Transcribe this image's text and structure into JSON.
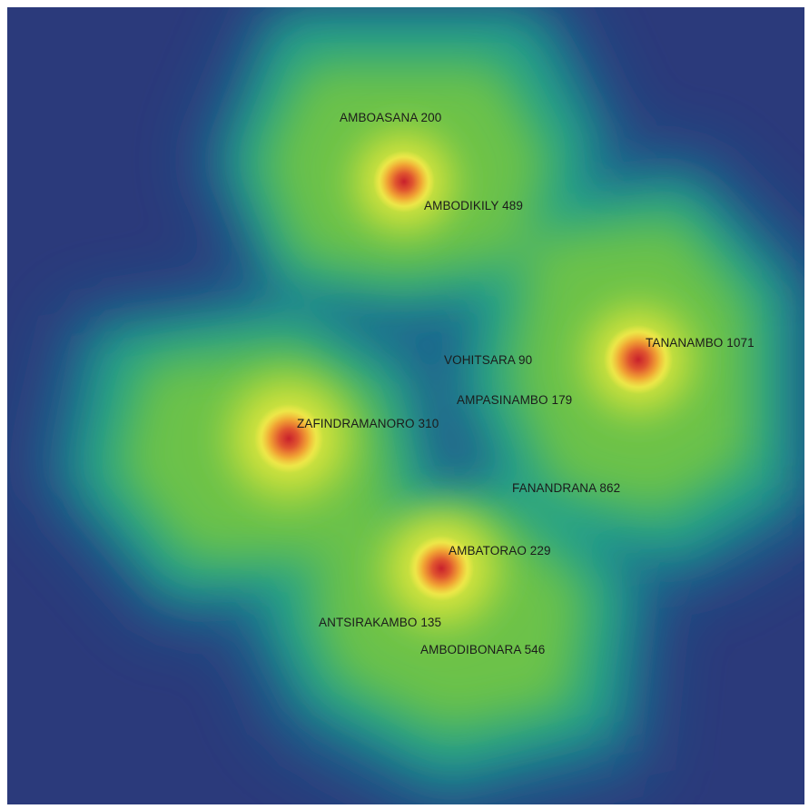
{
  "map": {
    "background_color": "#2b3a7b",
    "colormap": [
      "#2b3a7b",
      "#1d6c8c",
      "#22a089",
      "#74c447",
      "#b7dc2a",
      "#f4ec45",
      "#f0a030",
      "#d2352d"
    ],
    "places": [
      {
        "id": "amboasana",
        "label": "AMBOASANA 200"
      },
      {
        "id": "ambodikily",
        "label": "AMBODIKILY 489"
      },
      {
        "id": "tananambo",
        "label": "TANANAMBO 1071"
      },
      {
        "id": "vohitsara",
        "label": "VOHITSARA 90"
      },
      {
        "id": "ampasinambo",
        "label": "AMPASINAMBO 179"
      },
      {
        "id": "zafindramanoro",
        "label": "ZAFINDRAMANORO 310"
      },
      {
        "id": "fanandrana",
        "label": "FANANDRANA 862"
      },
      {
        "id": "ambatorao",
        "label": "AMBATORAO 229"
      },
      {
        "id": "antsirakambo",
        "label": "ANTSIRAKAMBO 135"
      },
      {
        "id": "ambodibonara",
        "label": "AMBODIBONARA 546"
      }
    ]
  }
}
